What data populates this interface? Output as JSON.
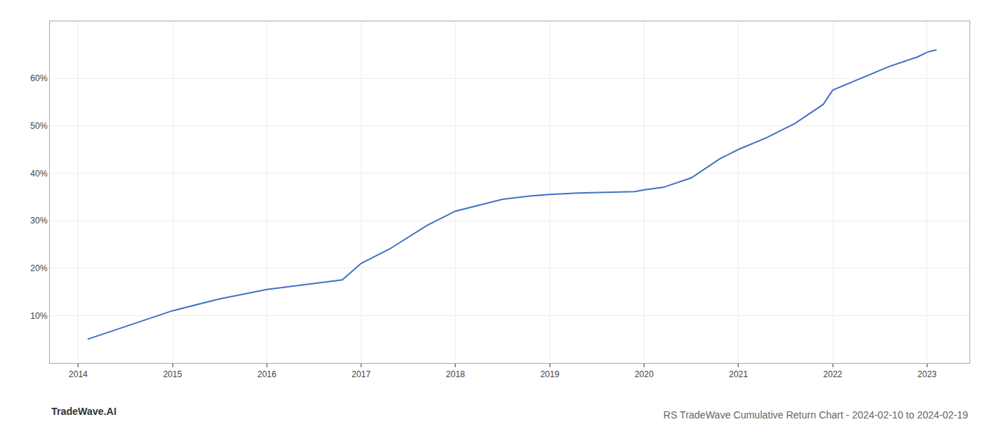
{
  "chart_data": {
    "type": "line",
    "title": "RS TradeWave Cumulative Return Chart - 2024-02-10 to 2024-02-19",
    "annotations": [
      "TradeWave.AI"
    ],
    "x": [
      2014.1,
      2014.4,
      2015.0,
      2015.5,
      2016.0,
      2016.4,
      2016.8,
      2017.0,
      2017.3,
      2017.7,
      2018.0,
      2018.2,
      2018.5,
      2018.8,
      2019.0,
      2019.3,
      2019.6,
      2019.9,
      2020.0,
      2020.2,
      2020.5,
      2020.8,
      2021.0,
      2021.3,
      2021.6,
      2021.9,
      2022.0,
      2022.3,
      2022.6,
      2022.9,
      2023.0,
      2023.1
    ],
    "values": [
      5.0,
      7.0,
      11.0,
      13.5,
      15.5,
      16.5,
      17.5,
      21.0,
      24.0,
      29.0,
      32.0,
      33.0,
      34.5,
      35.2,
      35.5,
      35.8,
      36.0,
      36.1,
      36.5,
      37.0,
      39.0,
      43.0,
      45.0,
      47.5,
      50.5,
      54.5,
      57.5,
      60.0,
      62.5,
      64.5,
      65.5,
      66.0
    ],
    "color": "#4472c4",
    "xlim": [
      2013.7,
      2023.45
    ],
    "ylim": [
      0,
      72
    ],
    "xticks": [
      2014,
      2015,
      2016,
      2017,
      2018,
      2019,
      2020,
      2021,
      2022,
      2023
    ],
    "yticks": [
      {
        "value": 10,
        "label": "10%"
      },
      {
        "value": 20,
        "label": "20%"
      },
      {
        "value": 30,
        "label": "30%"
      },
      {
        "value": 40,
        "label": "40%"
      },
      {
        "value": 50,
        "label": "50%"
      },
      {
        "value": 60,
        "label": "60%"
      }
    ],
    "grid": true
  }
}
